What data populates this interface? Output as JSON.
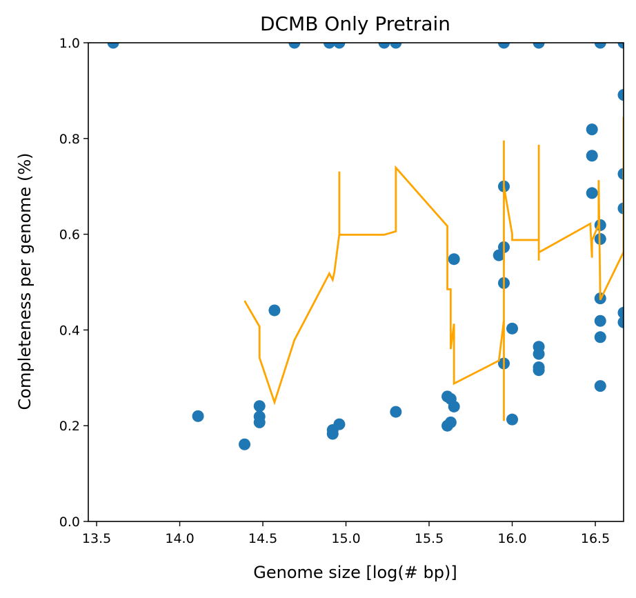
{
  "chart_data": {
    "type": "scatter",
    "title": "DCMB Only Pretrain",
    "xlabel": "Genome size [log(# bp)]",
    "ylabel": "Completeness per genome (%)",
    "xlim": [
      13.45,
      16.67
    ],
    "ylim": [
      0.0,
      1.0
    ],
    "xticks": [
      13.5,
      14.0,
      14.5,
      15.0,
      15.5,
      16.0,
      16.5
    ],
    "xtick_labels": [
      "13.5",
      "14.0",
      "14.5",
      "15.0",
      "15.5",
      "16.0",
      "16.5"
    ],
    "yticks": [
      0.0,
      0.2,
      0.4,
      0.6,
      0.8,
      1.0
    ],
    "ytick_labels": [
      "0.0",
      "0.2",
      "0.4",
      "0.6",
      "0.8",
      "1.0"
    ],
    "grid": false,
    "series": [
      {
        "kind": "scatter",
        "color": "#1f77b4",
        "points": [
          [
            13.6,
            1.0
          ],
          [
            14.69,
            1.0
          ],
          [
            14.9,
            1.0
          ],
          [
            14.96,
            1.0
          ],
          [
            15.23,
            1.0
          ],
          [
            15.3,
            1.0
          ],
          [
            15.95,
            1.0
          ],
          [
            16.16,
            1.0
          ],
          [
            16.53,
            1.0
          ],
          [
            16.67,
            1.0
          ],
          [
            14.11,
            0.22
          ],
          [
            14.39,
            0.161
          ],
          [
            14.48,
            0.241
          ],
          [
            14.48,
            0.219
          ],
          [
            14.48,
            0.207
          ],
          [
            14.57,
            0.441
          ],
          [
            14.92,
            0.191
          ],
          [
            14.92,
            0.183
          ],
          [
            14.96,
            0.203
          ],
          [
            15.3,
            0.229
          ],
          [
            15.61,
            0.261
          ],
          [
            15.61,
            0.2
          ],
          [
            15.63,
            0.256
          ],
          [
            15.63,
            0.207
          ],
          [
            15.65,
            0.24
          ],
          [
            15.65,
            0.548
          ],
          [
            15.92,
            0.556
          ],
          [
            15.95,
            0.7
          ],
          [
            15.95,
            0.573
          ],
          [
            15.95,
            0.498
          ],
          [
            15.95,
            0.33
          ],
          [
            16.0,
            0.403
          ],
          [
            16.0,
            0.213
          ],
          [
            16.16,
            0.365
          ],
          [
            16.16,
            0.35
          ],
          [
            16.16,
            0.322
          ],
          [
            16.16,
            0.316
          ],
          [
            16.48,
            0.819
          ],
          [
            16.48,
            0.764
          ],
          [
            16.48,
            0.686
          ],
          [
            16.53,
            0.619
          ],
          [
            16.53,
            0.59
          ],
          [
            16.53,
            0.466
          ],
          [
            16.53,
            0.419
          ],
          [
            16.53,
            0.385
          ],
          [
            16.53,
            0.283
          ],
          [
            16.67,
            0.891
          ],
          [
            16.67,
            0.726
          ],
          [
            16.67,
            0.654
          ],
          [
            16.67,
            0.436
          ],
          [
            16.67,
            0.416
          ]
        ]
      },
      {
        "kind": "line",
        "color": "#ffa500",
        "points": [
          [
            14.39,
            0.461
          ],
          [
            14.48,
            0.407
          ],
          [
            14.48,
            0.342
          ],
          [
            14.57,
            0.249
          ],
          [
            14.69,
            0.379
          ],
          [
            14.9,
            0.518
          ],
          [
            14.92,
            0.505
          ],
          [
            14.93,
            0.52
          ],
          [
            14.96,
            0.6
          ],
          [
            14.96,
            0.731
          ],
          [
            14.96,
            0.599
          ],
          [
            15.23,
            0.599
          ],
          [
            15.3,
            0.606
          ],
          [
            15.3,
            0.739
          ],
          [
            15.61,
            0.617
          ],
          [
            15.61,
            0.485
          ],
          [
            15.63,
            0.485
          ],
          [
            15.63,
            0.36
          ],
          [
            15.65,
            0.413
          ],
          [
            15.65,
            0.288
          ],
          [
            15.92,
            0.336
          ],
          [
            15.95,
            0.42
          ],
          [
            15.95,
            0.796
          ],
          [
            15.95,
            0.73
          ],
          [
            15.95,
            0.21
          ],
          [
            15.95,
            0.7
          ],
          [
            16.0,
            0.6
          ],
          [
            16.0,
            0.588
          ],
          [
            16.16,
            0.588
          ],
          [
            16.16,
            0.787
          ],
          [
            16.16,
            0.545
          ],
          [
            16.16,
            0.562
          ],
          [
            16.47,
            0.622
          ],
          [
            16.48,
            0.551
          ],
          [
            16.48,
            0.587
          ],
          [
            16.52,
            0.62
          ],
          [
            16.52,
            0.713
          ],
          [
            16.53,
            0.463
          ],
          [
            16.67,
            0.563
          ],
          [
            16.67,
            0.845
          ]
        ]
      }
    ]
  }
}
